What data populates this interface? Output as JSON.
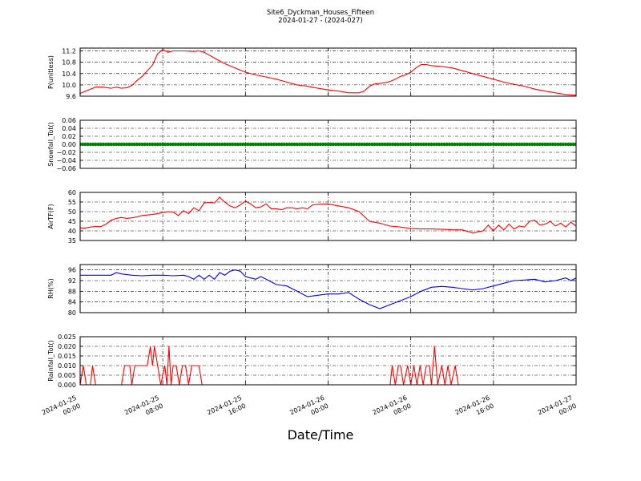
{
  "figure": {
    "title": "Site6_Dyckman_Houses_Fifteen",
    "subtitle": "2024-01-27 - (2024-027)",
    "xlabel": "Date/Time"
  },
  "chart_data": [
    {
      "type": "line",
      "ylabel": "P(unitless)",
      "color": "#ff0000",
      "xlim": [
        "2024-01-25 00:00",
        "2024-01-27 00:00"
      ],
      "ylim": [
        9.6,
        11.3
      ],
      "yticks": [
        "9.6",
        "10.0",
        "10.4",
        "10.8",
        "11.2"
      ],
      "xticks": [
        "2024-01-25 00:00",
        "2024-01-25 08:00",
        "2024-01-25 16:00",
        "2024-01-26 00:00",
        "2024-01-26 08:00",
        "2024-01-26 16:00",
        "2024-01-27 00:00"
      ],
      "grid": true,
      "points": [
        [
          0,
          9.7
        ],
        [
          1,
          9.85
        ],
        [
          1.5,
          9.92
        ],
        [
          2,
          9.93
        ],
        [
          3,
          9.88
        ],
        [
          3.5,
          9.92
        ],
        [
          4,
          9.88
        ],
        [
          4.5,
          9.9
        ],
        [
          5,
          9.98
        ],
        [
          5.5,
          10.15
        ],
        [
          6,
          10.3
        ],
        [
          6.5,
          10.5
        ],
        [
          7,
          10.7
        ],
        [
          7.5,
          11.1
        ],
        [
          8,
          11.25
        ],
        [
          8.5,
          11.15
        ],
        [
          9,
          11.2
        ],
        [
          10,
          11.2
        ],
        [
          11,
          11.18
        ],
        [
          11.5,
          11.2
        ],
        [
          12,
          11.15
        ],
        [
          12.5,
          11.05
        ],
        [
          13,
          10.95
        ],
        [
          14,
          10.75
        ],
        [
          15,
          10.6
        ],
        [
          16,
          10.45
        ],
        [
          17,
          10.35
        ],
        [
          18,
          10.28
        ],
        [
          19,
          10.2
        ],
        [
          20,
          10.1
        ],
        [
          21,
          10.0
        ],
        [
          22,
          9.95
        ],
        [
          23,
          9.88
        ],
        [
          24,
          9.82
        ],
        [
          25,
          9.78
        ],
        [
          25.5,
          9.75
        ],
        [
          26,
          9.72
        ],
        [
          27,
          9.72
        ],
        [
          27.5,
          9.78
        ],
        [
          28,
          9.95
        ],
        [
          28.5,
          10.03
        ],
        [
          29,
          10.05
        ],
        [
          29.5,
          10.08
        ],
        [
          30,
          10.12
        ],
        [
          30.5,
          10.2
        ],
        [
          31,
          10.3
        ],
        [
          31.5,
          10.35
        ],
        [
          32,
          10.45
        ],
        [
          32.5,
          10.6
        ],
        [
          33,
          10.72
        ],
        [
          33.5,
          10.72
        ],
        [
          34,
          10.68
        ],
        [
          35,
          10.65
        ],
        [
          36,
          10.6
        ],
        [
          37,
          10.5
        ],
        [
          38,
          10.4
        ],
        [
          39,
          10.3
        ],
        [
          40,
          10.2
        ],
        [
          41,
          10.1
        ],
        [
          42,
          10.02
        ],
        [
          43,
          9.95
        ],
        [
          44,
          9.85
        ],
        [
          45,
          9.78
        ],
        [
          46,
          9.72
        ],
        [
          47,
          9.66
        ],
        [
          48,
          9.63
        ]
      ]
    },
    {
      "type": "scatter",
      "ylabel": "Snowfall_Tot()",
      "color": "#008000",
      "xlim": [
        "2024-01-25 00:00",
        "2024-01-27 00:00"
      ],
      "ylim": [
        -0.06,
        0.06
      ],
      "yticks": [
        "−0.06",
        "−0.04",
        "−0.02",
        "0.00",
        "0.02",
        "0.04",
        "0.06"
      ],
      "grid": true,
      "constant_value": 0.0,
      "point_spacing_hours": 0.25
    },
    {
      "type": "line",
      "ylabel": "AirTF(F)",
      "color": "#ff0000",
      "xlim": [
        "2024-01-25 00:00",
        "2024-01-27 00:00"
      ],
      "ylim": [
        35,
        60
      ],
      "yticks": [
        "35",
        "40",
        "45",
        "50",
        "55",
        "60"
      ],
      "grid": true,
      "points": [
        [
          0,
          41.5
        ],
        [
          0.5,
          41.5
        ],
        [
          1,
          42
        ],
        [
          1.5,
          42.3
        ],
        [
          2,
          42.2
        ],
        [
          2.5,
          43.5
        ],
        [
          3,
          45.5
        ],
        [
          3.5,
          46.5
        ],
        [
          4,
          47
        ],
        [
          4.5,
          46.5
        ],
        [
          5,
          46.8
        ],
        [
          5.5,
          47.3
        ],
        [
          6,
          48
        ],
        [
          7,
          48.5
        ],
        [
          7.5,
          49
        ],
        [
          8,
          49.5
        ],
        [
          8.5,
          50
        ],
        [
          9,
          49.8
        ],
        [
          9.5,
          48
        ],
        [
          10,
          50.5
        ],
        [
          10.5,
          49
        ],
        [
          11,
          52
        ],
        [
          11.5,
          50.5
        ],
        [
          12,
          54.5
        ],
        [
          12.5,
          54.8
        ],
        [
          13,
          54.5
        ],
        [
          13.5,
          57.5
        ],
        [
          14,
          55
        ],
        [
          14.5,
          53
        ],
        [
          15,
          52
        ],
        [
          15.5,
          53.5
        ],
        [
          16,
          55.5
        ],
        [
          16.5,
          54
        ],
        [
          17,
          52
        ],
        [
          17.5,
          52.5
        ],
        [
          18,
          54
        ],
        [
          18.5,
          51.5
        ],
        [
          19,
          51.5
        ],
        [
          19.5,
          51
        ],
        [
          20,
          52
        ],
        [
          20.5,
          52
        ],
        [
          21,
          51.5
        ],
        [
          21.5,
          52
        ],
        [
          22,
          51.5
        ],
        [
          22.5,
          53.5
        ],
        [
          23,
          53.8
        ],
        [
          24,
          54
        ],
        [
          25,
          53
        ],
        [
          26,
          52
        ],
        [
          27,
          50
        ],
        [
          27.5,
          47.5
        ],
        [
          28,
          45
        ],
        [
          29,
          44
        ],
        [
          30,
          42.5
        ],
        [
          31,
          42
        ],
        [
          32,
          41.2
        ],
        [
          33,
          41
        ],
        [
          34,
          41
        ],
        [
          35,
          40.8
        ],
        [
          36,
          40.6
        ],
        [
          37,
          40.5
        ],
        [
          38,
          39
        ],
        [
          38.5,
          39.5
        ],
        [
          39,
          40
        ],
        [
          39.5,
          43
        ],
        [
          40,
          40
        ],
        [
          40.5,
          43
        ],
        [
          41,
          40.5
        ],
        [
          41.5,
          43.5
        ],
        [
          42,
          41
        ],
        [
          42.5,
          42.5
        ],
        [
          43,
          42
        ],
        [
          43.5,
          45
        ],
        [
          44,
          45.5
        ],
        [
          44.5,
          43
        ],
        [
          45,
          43.5
        ],
        [
          45.5,
          45
        ],
        [
          46,
          42.5
        ],
        [
          46.5,
          44
        ],
        [
          47,
          42
        ],
        [
          47.5,
          44.5
        ],
        [
          48,
          42.5
        ],
        [
          48.5,
          44
        ],
        [
          49,
          40
        ],
        [
          49.5,
          40.5
        ],
        [
          50,
          43
        ],
        [
          51,
          43.5
        ],
        [
          52,
          44
        ],
        [
          53,
          43.5
        ],
        [
          54,
          43.2
        ],
        [
          55,
          43.2
        ],
        [
          56,
          43.8
        ],
        [
          57,
          44
        ]
      ]
    },
    {
      "type": "line",
      "ylabel": "RH(%)",
      "color": "#0000ff",
      "xlim": [
        "2024-01-25 00:00",
        "2024-01-27 00:00"
      ],
      "ylim": [
        80,
        98
      ],
      "yticks": [
        "80",
        "84",
        "88",
        "92",
        "96"
      ],
      "grid": true,
      "points": [
        [
          0,
          94
        ],
        [
          1,
          94
        ],
        [
          2,
          94
        ],
        [
          3,
          94
        ],
        [
          3.5,
          95
        ],
        [
          4,
          94.5
        ],
        [
          5,
          94
        ],
        [
          6,
          93.8
        ],
        [
          7,
          94
        ],
        [
          8,
          94
        ],
        [
          9,
          93.8
        ],
        [
          10,
          94
        ],
        [
          10.5,
          93.5
        ],
        [
          11,
          92.5
        ],
        [
          11.5,
          94
        ],
        [
          12,
          92.5
        ],
        [
          12.5,
          94
        ],
        [
          13,
          92.5
        ],
        [
          13.5,
          95
        ],
        [
          14,
          94
        ],
        [
          14.5,
          95.5
        ],
        [
          15,
          96
        ],
        [
          15.5,
          95.5
        ],
        [
          16,
          93.5
        ],
        [
          16.5,
          93
        ],
        [
          17,
          92.5
        ],
        [
          17.5,
          93.5
        ],
        [
          18,
          92.5
        ],
        [
          19,
          90.5
        ],
        [
          20,
          90
        ],
        [
          21,
          88
        ],
        [
          22,
          86
        ],
        [
          23,
          86.5
        ],
        [
          24,
          87
        ],
        [
          25,
          87
        ],
        [
          26,
          87.5
        ],
        [
          27,
          85
        ],
        [
          28,
          83
        ],
        [
          29,
          81.5
        ],
        [
          30,
          83
        ],
        [
          31,
          84.5
        ],
        [
          32,
          86
        ],
        [
          33,
          88
        ],
        [
          34,
          89.5
        ],
        [
          35,
          89.8
        ],
        [
          36,
          89.5
        ],
        [
          37,
          89
        ],
        [
          38,
          88.5
        ],
        [
          39,
          89
        ],
        [
          40,
          90
        ],
        [
          41,
          91
        ],
        [
          42,
          92
        ],
        [
          43,
          92.2
        ],
        [
          44,
          92.5
        ],
        [
          45,
          91.5
        ],
        [
          46,
          92
        ],
        [
          47,
          93
        ],
        [
          47.5,
          92
        ],
        [
          48,
          93
        ],
        [
          48.5,
          92
        ],
        [
          49,
          93
        ],
        [
          50,
          92.5
        ],
        [
          51,
          92.8
        ],
        [
          52,
          92.5
        ],
        [
          53,
          90
        ],
        [
          53.5,
          89
        ],
        [
          54,
          90
        ],
        [
          54.5,
          88
        ],
        [
          55,
          89
        ],
        [
          55.5,
          88
        ],
        [
          56,
          90
        ],
        [
          56.5,
          88.5
        ],
        [
          57,
          89
        ]
      ]
    },
    {
      "type": "line",
      "ylabel": "Rainfall_Tot()",
      "color": "#ff0000",
      "xlim": [
        "2024-01-25 00:00",
        "2024-01-27 00:00"
      ],
      "ylim": [
        0.0,
        0.025
      ],
      "yticks": [
        "0.000",
        "0.005",
        "0.010",
        "0.015",
        "0.020",
        "0.025"
      ],
      "grid": true,
      "points": [
        [
          0,
          0
        ],
        [
          0.3,
          0.01
        ],
        [
          0.6,
          0
        ],
        [
          1,
          0
        ],
        [
          1.2,
          0.01
        ],
        [
          1.5,
          0
        ],
        [
          4,
          0
        ],
        [
          4.3,
          0.01
        ],
        [
          4.8,
          0.01
        ],
        [
          5,
          0
        ],
        [
          5.3,
          0.01
        ],
        [
          6,
          0.01
        ],
        [
          6.5,
          0.01
        ],
        [
          6.8,
          0.02
        ],
        [
          7,
          0.01
        ],
        [
          7.2,
          0.02
        ],
        [
          7.5,
          0.01
        ],
        [
          7.8,
          0
        ],
        [
          8.2,
          0.01
        ],
        [
          8.4,
          0
        ],
        [
          8.6,
          0.02
        ],
        [
          8.8,
          0
        ],
        [
          9,
          0.01
        ],
        [
          9.3,
          0.01
        ],
        [
          9.6,
          0
        ],
        [
          9.9,
          0.01
        ],
        [
          10.2,
          0.01
        ],
        [
          10.5,
          0
        ],
        [
          10.8,
          0.01
        ],
        [
          11.5,
          0.01
        ],
        [
          11.8,
          0
        ],
        [
          30,
          0
        ],
        [
          30.2,
          0.01
        ],
        [
          30.5,
          0
        ],
        [
          30.8,
          0.01
        ],
        [
          31,
          0.01
        ],
        [
          31.3,
          0
        ],
        [
          31.7,
          0.01
        ],
        [
          32,
          0
        ],
        [
          32.3,
          0.01
        ],
        [
          32.6,
          0
        ],
        [
          32.9,
          0.01
        ],
        [
          33.2,
          0
        ],
        [
          33.5,
          0.01
        ],
        [
          33.8,
          0.01
        ],
        [
          34,
          0
        ],
        [
          34.3,
          0.02
        ],
        [
          34.6,
          0
        ],
        [
          35,
          0.01
        ],
        [
          35.3,
          0
        ],
        [
          35.6,
          0.01
        ],
        [
          35.9,
          0
        ],
        [
          36.3,
          0.01
        ],
        [
          36.6,
          0
        ],
        [
          60,
          0
        ]
      ]
    }
  ]
}
